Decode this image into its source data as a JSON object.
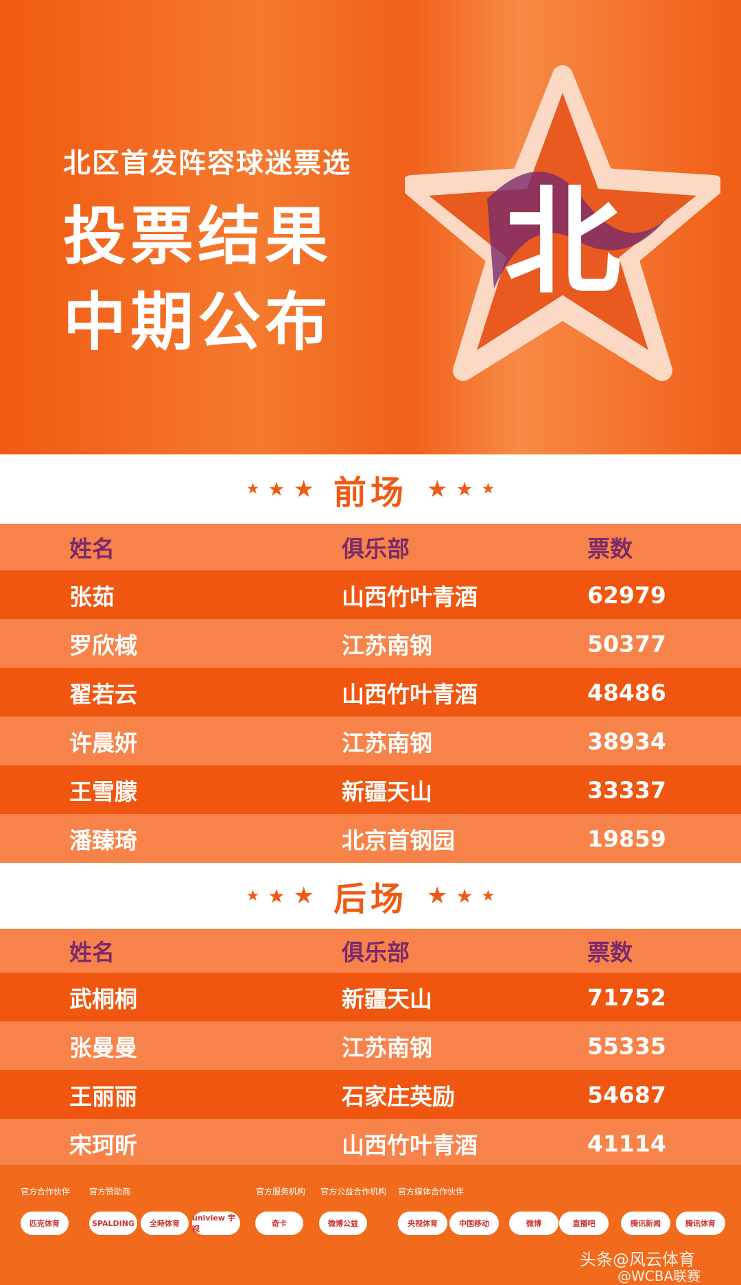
{
  "header": {
    "subtitle": "北区首发阵容球迷票选",
    "title_lines": [
      "投票结果",
      "中期公布"
    ],
    "star_char": "北"
  },
  "sections": [
    {
      "title": "前场",
      "columns": [
        "姓名",
        "俱乐部",
        "票数"
      ],
      "rows": [
        [
          "张茹",
          "山西竹叶青酒",
          62979
        ],
        [
          "罗欣棫",
          "江苏南钢",
          50377
        ],
        [
          "翟若云",
          "山西竹叶青酒",
          48486
        ],
        [
          "许晨妍",
          "江苏南钢",
          38934
        ],
        [
          "王雪朦",
          "新疆天山",
          33337
        ],
        [
          "潘臻琦",
          "北京首钢园",
          19859
        ]
      ]
    },
    {
      "title": "后场",
      "columns": [
        "姓名",
        "俱乐部",
        "票数"
      ],
      "rows": [
        [
          "武桐桐",
          "新疆天山",
          71752
        ],
        [
          "张曼曼",
          "江苏南钢",
          55335
        ],
        [
          "王丽丽",
          "石家庄英励",
          54687
        ],
        [
          "宋珂昕",
          "山西竹叶青酒",
          41114
        ]
      ]
    }
  ],
  "footer": {
    "partner_labels": [
      "官方合作伙伴",
      "官方赞助商",
      "官方服务机构",
      "官方公益合作机构",
      "官方媒体合作伙伴"
    ],
    "logos": [
      "匹克体育",
      "SPALDING",
      "全時体育",
      "uniview 宇视",
      "奇卡",
      "微博公益",
      "央视体育",
      "中国移动",
      "微博",
      "直播吧",
      "腾讯新闻",
      "腾讯体育"
    ],
    "watermark": "头条@风云体育",
    "watermark2": "@WCBA联赛"
  }
}
